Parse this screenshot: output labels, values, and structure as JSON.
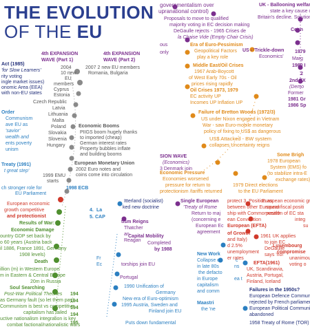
{
  "title": {
    "line1": "THE EVOLUTION",
    "line2_prefix": "OF THE ",
    "line2_bold": "EU"
  },
  "colors": {
    "navy": "#2b3f8f",
    "red": "#d0392b",
    "purple": "#7b2f8e",
    "blue": "#2b7fc1",
    "orange": "#e08a1a",
    "green": "#4f8f2f",
    "grey": "#8a8a8a"
  },
  "left_col": {
    "act": "Act (1985)",
    "act_sub": "'for Slow Learners'",
    "l1": "rity voting",
    "l2": "ingle market issues)",
    "l3": "onomic Area (EEA)",
    "l4": "with non-EU states",
    "order": "Order",
    "order1": "Communism",
    "order2": "ave EU as",
    "order3": "'savior'",
    "order4": "wealth and",
    "order5": "ents poverty",
    "order6": "unism",
    "treaty": "Treaty (1991)",
    "treaty_sub": "t great step'",
    "ch": "ch stronger role for",
    "ch2": "EU Parliament"
  },
  "exp1": {
    "title": "4th EXPANSION",
    "title2": "WAVE (Part 1)",
    "year": "2004",
    "lines": [
      "10 new",
      "EU",
      "members",
      "Cyprus",
      "Estonia",
      "Czech Republic",
      "Latvia",
      "Lithuania",
      "Malta",
      "Poland",
      "Slovakia",
      "Slovenia",
      "Hungary"
    ],
    "emu1": "1999 EMU",
    "emu2": "starts"
  },
  "exp2": {
    "title": "4th EXPANSION",
    "title2": "WAVE (Part 2)",
    "l1": "2007 2 new EU members",
    "l2": "Romania, Bulgaria"
  },
  "boom": {
    "title": "Economic Booms",
    "l1": "PIIGS boom hugely thanks",
    "l2": "to imported (cheap)",
    "l3": "German interest rates",
    "l4": "Property bubbles inflate",
    "l5": "and building booms"
  },
  "monetary": {
    "title": "European Monetary Union",
    "l1": "2002 Euro notes and",
    "l2": "coins come into circulation"
  },
  "ecb": "1998 ECB",
  "center_top": {
    "gov": "governmentalism over",
    "supra": "upranational control)",
    "p1": "Proposals to move to qualified",
    "p2": "majority voting in EC decision making",
    "p3": "DeGaulle rejects - 1965 Crises de",
    "p4": "la Chaise Vide (Empty Chair Crisis)",
    "pess": "Era of Euro-Pessimism",
    "pess2": "Geopolitical Factors",
    "pess3": "play a key role",
    "mid": "Middle East/Oil Crises",
    "mid1": "1967 Arab-Boycott",
    "mid2": "of West Early 70s - Oil",
    "mid3": "prices rising rapidly",
    "mid4": "Oil Crises 1973, 1979",
    "mid5": "EC activity UP",
    "mid6": "Incomes UP Inflation UP",
    "ous": "ous",
    "only": "only",
    "us": "US - 'Trickle-down",
    "us2": "Economics'",
    "bw": "Failure of Bretton Woods (1972/3)",
    "bw1": "US under Nixon engaged in Vietnam",
    "bw2": "War - saw Euro-mobile monetary",
    "bw3": "policy of fixing to US$ as dangerous",
    "bw4": "US$ Attacked - BW system",
    "bw5": "collapses Uncertainty reigns"
  },
  "right_top": {
    "uk": "UK - Ballooning welfar",
    "uk2": "state a key cause of",
    "uk3": "Britain's decline. Solution?",
    "conn": "Conn",
    "n1979": "1979",
    "marg": "Marg",
    "n1980": "1980 I",
    "n2": "2",
    "exp2nd": "2nd EX",
    "demo": "(Demo",
    "former": "Former",
    "g1981": "1981 Gr",
    "s1986": "1986 Sp"
  },
  "right_mid": {
    "bright": "Some Brigh",
    "b1": "1978 European",
    "b2": "System (EMS) fo",
    "b3": "(to stabilize intra-E",
    "b4": "exchange rates)"
  },
  "sion_wave": {
    "title": "SION WAVE",
    "l1": "(Economics)",
    "l2": "3 Denmark join"
  },
  "econ_press": {
    "title": "Economic Pressure",
    "l1": "Economies worsened",
    "l2": "pressure for return to",
    "l3": "protectionism /tariffs returned"
  },
  "direct": {
    "l1": "1979 Direct elections",
    "l2": "to the EU Parliament"
  },
  "lower_left": {
    "l1": "European economic",
    "l2": "growth  competitive",
    "l3": "and  protectionist",
    "rw": "Results of War:",
    "ed": "Economic Damage",
    "ed1": "ountry GDP set back by",
    "ed2": "o 60 years (Austria back",
    "ed3": "il 1886, France 1891, Germany",
    "ed4": "1908 levels)",
    "death": "Death",
    "d1": "illion (m) in Western Europe",
    "d2": "m in Eastern & Central Europe",
    "d3": "20m in Russia",
    "ss": "Soul Searching",
    "ss_sub": "Post-War Political Theories",
    "ss1": "as Germany fault (so let them pay)",
    "ss2": "Communism is best vs competitive",
    "ss3": "capitalism has failed",
    "ss4": "uctive nationalism integration is key",
    "ss5": "combat factional/nationalistic wars",
    "y1": "194",
    "y2": "194",
    "y3": "194",
    "y4": "194",
    "y5": "195"
  },
  "cap": {
    "n4": "4.",
    "la": "La",
    "n5": "5.",
    "cap": "CAP"
  },
  "center_low": {
    "th": "Itterland (socialist)",
    "th2": "ked new doctrine",
    "rr": "tism Reigns",
    "rr1": "Thatcher",
    "rr2": "an",
    "rr3": "Reagan",
    "fr": "Fr",
    "fr2": "Ec",
    "cap_mob": "Capital Mobility",
    "cap_mob2": "Completed",
    "cap_mob3": "by 1988",
    "ships": "torships join EU",
    "portugal": "Portugal",
    "nw": "New Work",
    "nw1": "Collapse o",
    "nw2": "in late 80s",
    "nw3": "the defacto",
    "nw4": "in Europe",
    "nw5": "capitalism",
    "nw6": "and comm",
    "u1990": "1990 Unification of",
    "u1990b": "Germany",
    "opt": "New era of Euro-optimism",
    "opt2": "1995 Austria, Sweden and",
    "opt3": "Finland join EU",
    "maa": "Maastri",
    "maa2": "the 'ne",
    "puts": "Puts down fundamental",
    "cc": "c",
    "ns": "ns",
    "et": "ea t"
  },
  "single": {
    "title": "Single European",
    "sub": "'Treaty of Rome",
    "l1": "Return to maj",
    "l2": "(concerning e",
    "l3": "European Ec",
    "l4": "agreement"
  },
  "protect": {
    "l1": "protect 3. Position as",
    "l2": "between other European",
    "l3": "ship with Commonwealth",
    "l4": "ean Convention",
    "l5": "European (EFTA)"
  },
  "growth": {
    "title": "of Growth",
    "l1": "and Italy)",
    "l2": "d 2.5%",
    "l3": "unemployment",
    "l4": "er rates"
  },
  "uk_applies": {
    "l1": "1961 UK applies",
    "l2": "to join EC",
    "l3": "DeGaulle",
    "l4": "says 'no!'"
  },
  "efta": {
    "title": "EFTA(1961)",
    "l1": "UK, Scandinavia,",
    "l2": "Austria, Portugal,",
    "l3": "Finland, Iceland"
  },
  "econ_growth": {
    "l1": "European economic gro",
    "l2": "sound fiscal positi",
    "l3": "position of EC sta",
    "l4": "integ",
    "l5": "su"
  },
  "lux": {
    "title": "Luxembourg",
    "l1": "compromise",
    "l2": "unanimou",
    "l3": "voting o"
  },
  "failures": {
    "title": "Failures in the 1950s?",
    "l1": "European Defence Community (ED",
    "l2": "rejected by French parliament",
    "l3": "European Political Community (EP",
    "l4": "abandoned",
    "rome": "1958 Treaty of Rome (TOR)"
  }
}
